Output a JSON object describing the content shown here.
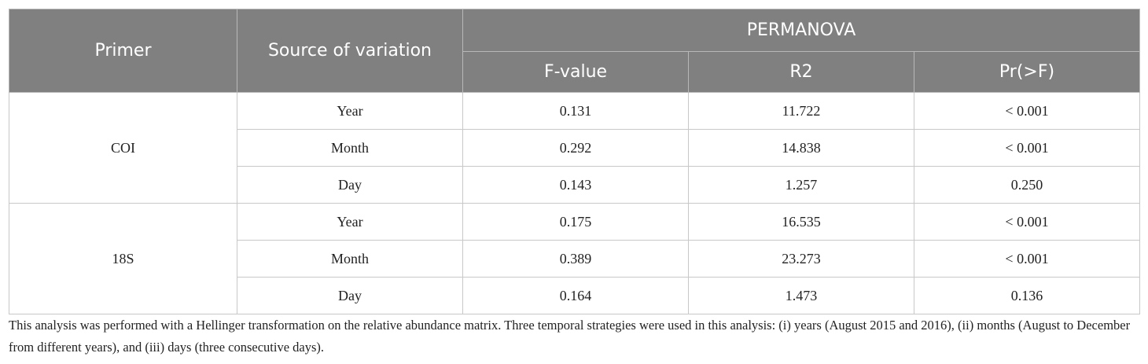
{
  "table": {
    "header": {
      "primer": "Primer",
      "source": "Source of variation",
      "group": "PERMANOVA",
      "columns": [
        "F-value",
        "R2",
        "Pr(>F)"
      ]
    },
    "groups": [
      {
        "primer": "COI",
        "rows": [
          [
            "Year",
            "0.131",
            "11.722",
            "< 0.001"
          ],
          [
            "Month",
            "0.292",
            "14.838",
            "< 0.001"
          ],
          [
            "Day",
            "0.143",
            "1.257",
            "0.250"
          ]
        ]
      },
      {
        "primer": "18S",
        "rows": [
          [
            "Year",
            "0.175",
            "16.535",
            "< 0.001"
          ],
          [
            "Month",
            "0.389",
            "23.273",
            "< 0.001"
          ],
          [
            "Day",
            "0.164",
            "1.473",
            "0.136"
          ]
        ]
      }
    ],
    "footnote": "This analysis was performed with a Hellinger transformation on the relative abundance matrix. Three temporal strategies were used in this analysis: (i) years (August 2015 and 2016), (ii) months (August to December from different years), and (iii) days (three consecutive days)."
  }
}
